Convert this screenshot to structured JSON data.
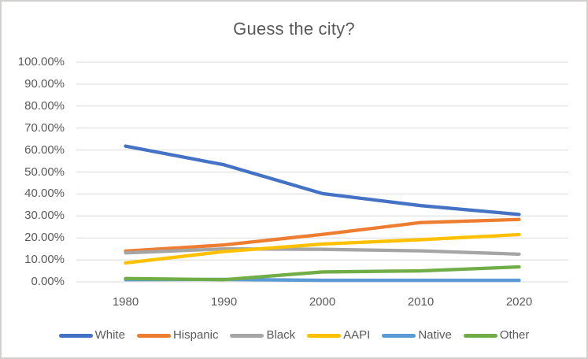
{
  "chart": {
    "title": "Guess the city?",
    "text_color": "#595959",
    "gridline_color": "#d9d9d9",
    "frame_border_color": "#d2cfcf",
    "background_color": "#ffffff"
  },
  "chart_data": {
    "type": "line",
    "title": "Guess the city?",
    "xlabel": "",
    "ylabel": "",
    "categories": [
      "1980",
      "1990",
      "2000",
      "2010",
      "2020"
    ],
    "series": [
      {
        "name": "White",
        "color": "#4472C4",
        "values": [
          61.8,
          53.3,
          40.2,
          34.7,
          30.7
        ]
      },
      {
        "name": "Hispanic",
        "color": "#ED7D31",
        "values": [
          14.0,
          16.8,
          21.6,
          27.0,
          28.4
        ]
      },
      {
        "name": "Black",
        "color": "#A5A5A5",
        "values": [
          13.2,
          15.0,
          14.8,
          14.1,
          12.6
        ]
      },
      {
        "name": "AAPI",
        "color": "#FFC000",
        "values": [
          8.6,
          13.8,
          17.2,
          19.2,
          21.5
        ]
      },
      {
        "name": "Native",
        "color": "#5B9BD5",
        "values": [
          1.0,
          1.1,
          0.7,
          0.7,
          0.7
        ]
      },
      {
        "name": "Other",
        "color": "#70AD47",
        "values": [
          1.5,
          1.0,
          4.5,
          5.0,
          6.8
        ]
      }
    ],
    "ylim": [
      0,
      100
    ],
    "ytick_step": 10,
    "ytick_labels_top_to_bottom": [
      "100.00%",
      "90.00%",
      "80.00%",
      "70.00%",
      "60.00%",
      "50.00%",
      "40.00%",
      "30.00%",
      "20.00%",
      "10.00%",
      "0.00%"
    ],
    "grid": true,
    "legend_position": "bottom",
    "legend_entries": [
      "White",
      "Hispanic",
      "Black",
      "AAPI",
      "Native",
      "Other"
    ]
  }
}
